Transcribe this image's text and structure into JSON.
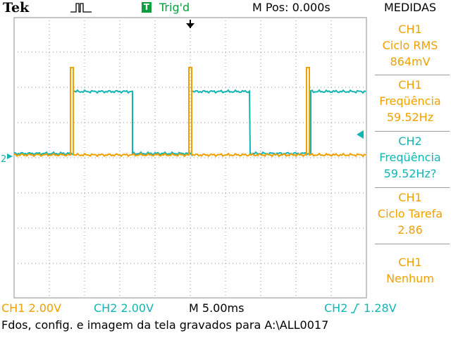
{
  "header": {
    "brand": "Tek",
    "acquisition_icon": "acquisition-pulse-icon",
    "trigger_badge": "T",
    "trigger_status": "Trig'd",
    "position": "M Pos: 0.000s",
    "menu_title": "MEDIDAS"
  },
  "measurements": [
    {
      "channel": "CH1",
      "name": "Ciclo RMS",
      "value": "864mV",
      "color": "#f0a000"
    },
    {
      "channel": "CH1",
      "name": "Freqüência",
      "value": "59.52Hz",
      "color": "#f0a000"
    },
    {
      "channel": "CH2",
      "name": "Freqüência",
      "value": "59.52Hz?",
      "color": "#14b4b4"
    },
    {
      "channel": "CH1",
      "name": "Ciclo Tarefa",
      "value": "2.86",
      "color": "#f0a000"
    },
    {
      "channel": "CH1",
      "name": "Nenhum",
      "value": "",
      "color": "#f0a000"
    }
  ],
  "status": {
    "ch1_scale": "CH1  2.00V",
    "ch2_scale": "CH2  2.00V",
    "timebase": "M 5.00ms",
    "trigger_source": "CH2",
    "trigger_level": "1.28V"
  },
  "message": "Fdos, config. e imagem da tela gravados para A:\\ALL0017",
  "colors": {
    "ch1": "#f0a000",
    "ch2": "#14b4b4",
    "grid": "#8c8c8c",
    "ground_marker_ch1": "#f0a000"
  },
  "channel_marker_label": "2"
}
